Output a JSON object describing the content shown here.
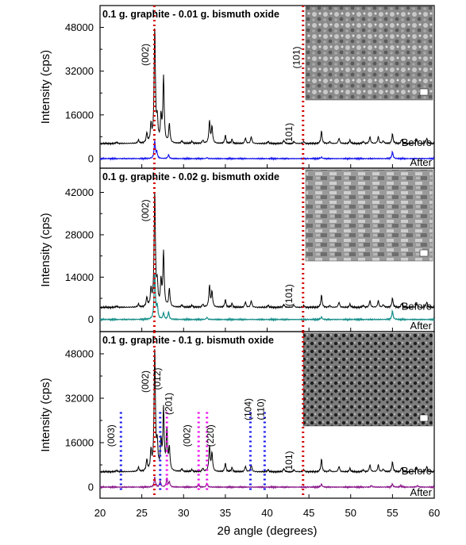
{
  "chart_data": {
    "type": "line",
    "xlabel": "2θ angle (degrees)",
    "xlim": [
      20,
      60
    ],
    "xticks": [
      "20",
      "25",
      "30",
      "35",
      "40",
      "45",
      "50",
      "55",
      "60"
    ],
    "panels": [
      {
        "title": "0.1 g. graphite - 0.01 g. bismuth oxide",
        "ylabel": "Intensity (cps)",
        "ylim": [
          -3500,
          56000
        ],
        "yticks": [
          0,
          16000,
          32000,
          48000
        ],
        "ytick_labels": [
          "0",
          "16000",
          "32000",
          "48000"
        ],
        "before_offset": 5500,
        "after_offset": 0,
        "trace_labels": {
          "before": "Before",
          "after": "After"
        },
        "peak_labels": [
          {
            "text": "(002)",
            "x": 25.8,
            "y": 38000
          },
          {
            "text": "(101)",
            "x": 43.9,
            "y": 37000
          },
          {
            "text": "(101)",
            "x": 43.0,
            "y": 9000
          }
        ],
        "ref_lines": [
          {
            "x": 26.5,
            "color": "#d40000"
          },
          {
            "x": 44.3,
            "color": "#d40000"
          }
        ],
        "peaks_before": [
          [
            22.0,
            500
          ],
          [
            24.6,
            1200
          ],
          [
            25.6,
            3500
          ],
          [
            26.1,
            6500
          ],
          [
            26.55,
            42000
          ],
          [
            26.85,
            8000
          ],
          [
            27.3,
            9000
          ],
          [
            27.6,
            24000
          ],
          [
            28.3,
            7000
          ],
          [
            29.8,
            1000
          ],
          [
            31.0,
            800
          ],
          [
            32.3,
            1200
          ],
          [
            33.1,
            8000
          ],
          [
            33.4,
            6000
          ],
          [
            35.0,
            3000
          ],
          [
            35.8,
            1500
          ],
          [
            37.4,
            2000
          ],
          [
            38.1,
            2500
          ],
          [
            40.1,
            800
          ],
          [
            42.0,
            1200
          ],
          [
            43.2,
            900
          ],
          [
            44.4,
            800
          ],
          [
            46.5,
            4500
          ],
          [
            47.5,
            700
          ],
          [
            48.6,
            2000
          ],
          [
            49.9,
            1200
          ],
          [
            51.5,
            700
          ],
          [
            52.3,
            2500
          ],
          [
            53.3,
            2500
          ],
          [
            53.9,
            1000
          ],
          [
            55.0,
            3500
          ],
          [
            56.1,
            1500
          ],
          [
            57.9,
            1500
          ],
          [
            59.1,
            2000
          ]
        ],
        "peaks_after": [
          [
            26.55,
            9000
          ],
          [
            26.8,
            3000
          ],
          [
            28.2,
            2000
          ],
          [
            32.8,
            500
          ],
          [
            46.5,
            800
          ],
          [
            55.0,
            3500
          ]
        ],
        "sem_image": true
      },
      {
        "title": "0.1 g. graphite - 0.02 g. bismuth oxide",
        "ylabel": "Intensity (cps)",
        "ylim": [
          -4000,
          50000
        ],
        "yticks": [
          0,
          14000,
          28000,
          42000
        ],
        "ytick_labels": [
          "0",
          "14000",
          "28000",
          "42000"
        ],
        "before_offset": 4000,
        "after_offset": 0,
        "trace_labels": {
          "before": "Before",
          "after": "After"
        },
        "peak_labels": [
          {
            "text": "(002)",
            "x": 25.8,
            "y": 36000
          },
          {
            "text": "(101)",
            "x": 43.0,
            "y": 8000
          }
        ],
        "ref_lines": [
          {
            "x": 26.5,
            "color": "#d40000"
          },
          {
            "x": 44.3,
            "color": "#d40000"
          }
        ],
        "peaks_before": [
          [
            22.0,
            400
          ],
          [
            24.6,
            1000
          ],
          [
            25.6,
            3000
          ],
          [
            26.1,
            5500
          ],
          [
            26.55,
            38000
          ],
          [
            26.85,
            7000
          ],
          [
            27.3,
            8000
          ],
          [
            27.6,
            18000
          ],
          [
            28.3,
            6000
          ],
          [
            29.8,
            800
          ],
          [
            31.0,
            700
          ],
          [
            32.3,
            1000
          ],
          [
            33.1,
            7000
          ],
          [
            33.4,
            5000
          ],
          [
            35.0,
            2500
          ],
          [
            35.8,
            1300
          ],
          [
            37.4,
            1800
          ],
          [
            38.1,
            2200
          ],
          [
            40.1,
            700
          ],
          [
            42.0,
            1000
          ],
          [
            43.2,
            800
          ],
          [
            44.4,
            700
          ],
          [
            46.5,
            4000
          ],
          [
            47.5,
            600
          ],
          [
            48.6,
            1800
          ],
          [
            49.9,
            1000
          ],
          [
            51.5,
            600
          ],
          [
            52.3,
            2200
          ],
          [
            53.3,
            2200
          ],
          [
            53.9,
            900
          ],
          [
            55.0,
            3000
          ],
          [
            56.1,
            1300
          ],
          [
            57.9,
            1300
          ],
          [
            59.1,
            1800
          ]
        ],
        "peaks_after": [
          [
            26.55,
            22000
          ],
          [
            26.85,
            6000
          ],
          [
            27.6,
            3000
          ],
          [
            28.2,
            3500
          ],
          [
            32.8,
            1000
          ],
          [
            46.5,
            1200
          ],
          [
            55.0,
            4000
          ]
        ],
        "sem_image": true
      },
      {
        "title": "0.1 g. graphite - 0.1 g. bismuth oxide",
        "ylabel": "Intensity (cps)",
        "ylim": [
          -4000,
          56000
        ],
        "yticks": [
          0,
          16000,
          32000,
          48000
        ],
        "ytick_labels": [
          "0",
          "16000",
          "32000",
          "48000"
        ],
        "before_offset": 5500,
        "after_offset": 0,
        "trace_labels": {
          "before": "Before",
          "after": "After"
        },
        "peak_labels": [
          {
            "text": "(003)",
            "x": 21.7,
            "y": 18500
          },
          {
            "text": "(002)",
            "x": 25.8,
            "y": 38000
          },
          {
            "text": "(012)",
            "x": 27.2,
            "y": 39000
          },
          {
            "text": "(201)",
            "x": 28.6,
            "y": 30000
          },
          {
            "text": "(002)",
            "x": 30.8,
            "y": 18500
          },
          {
            "text": "(220)",
            "x": 33.6,
            "y": 18500
          },
          {
            "text": "(104)",
            "x": 38.1,
            "y": 28000
          },
          {
            "text": "(110)",
            "x": 39.6,
            "y": 28000
          },
          {
            "text": "(101)",
            "x": 43.0,
            "y": 9000
          }
        ],
        "ref_lines": [
          {
            "x": 26.5,
            "color": "#d40000"
          },
          {
            "x": 44.3,
            "color": "#d40000"
          },
          {
            "x": 22.5,
            "color": "#1010ee"
          },
          {
            "x": 27.2,
            "color": "#1010ee"
          },
          {
            "x": 38.0,
            "color": "#1010ee"
          },
          {
            "x": 39.7,
            "color": "#1010ee"
          },
          {
            "x": 28.0,
            "color": "#ee00ee"
          },
          {
            "x": 31.8,
            "color": "#ee00ee"
          },
          {
            "x": 32.8,
            "color": "#ee00ee"
          }
        ],
        "peaks_before": [
          [
            22.0,
            500
          ],
          [
            24.6,
            1500
          ],
          [
            25.6,
            4000
          ],
          [
            26.1,
            7000
          ],
          [
            26.55,
            44000
          ],
          [
            26.85,
            9000
          ],
          [
            27.3,
            10000
          ],
          [
            27.6,
            22000
          ],
          [
            28.0,
            14000
          ],
          [
            28.3,
            8000
          ],
          [
            29.8,
            1000
          ],
          [
            31.0,
            800
          ],
          [
            32.3,
            1200
          ],
          [
            33.1,
            9000
          ],
          [
            33.4,
            6500
          ],
          [
            35.0,
            3000
          ],
          [
            35.8,
            1500
          ],
          [
            37.4,
            2000
          ],
          [
            38.1,
            2500
          ],
          [
            40.1,
            800
          ],
          [
            42.0,
            1200
          ],
          [
            43.2,
            900
          ],
          [
            44.4,
            800
          ],
          [
            46.5,
            4500
          ],
          [
            47.5,
            700
          ],
          [
            48.6,
            2000
          ],
          [
            49.9,
            1200
          ],
          [
            51.5,
            700
          ],
          [
            52.3,
            2500
          ],
          [
            53.3,
            2500
          ],
          [
            53.9,
            1000
          ],
          [
            55.0,
            3500
          ],
          [
            56.1,
            1500
          ],
          [
            57.9,
            1500
          ],
          [
            59.1,
            2000
          ]
        ],
        "peaks_after": [
          [
            26.55,
            5000
          ],
          [
            27.2,
            3000
          ],
          [
            28.0,
            4500
          ],
          [
            28.3,
            2500
          ],
          [
            31.8,
            1200
          ],
          [
            32.8,
            1800
          ],
          [
            46.5,
            1500
          ],
          [
            52.5,
            700
          ],
          [
            55.0,
            1500
          ],
          [
            56.0,
            800
          ],
          [
            58.0,
            800
          ]
        ],
        "sem_image": true
      }
    ]
  },
  "colors": {
    "before": "#000000",
    "after": [
      "#1a1aee",
      "#178f8a",
      "#8b1a8b"
    ],
    "axis": "#000000"
  }
}
